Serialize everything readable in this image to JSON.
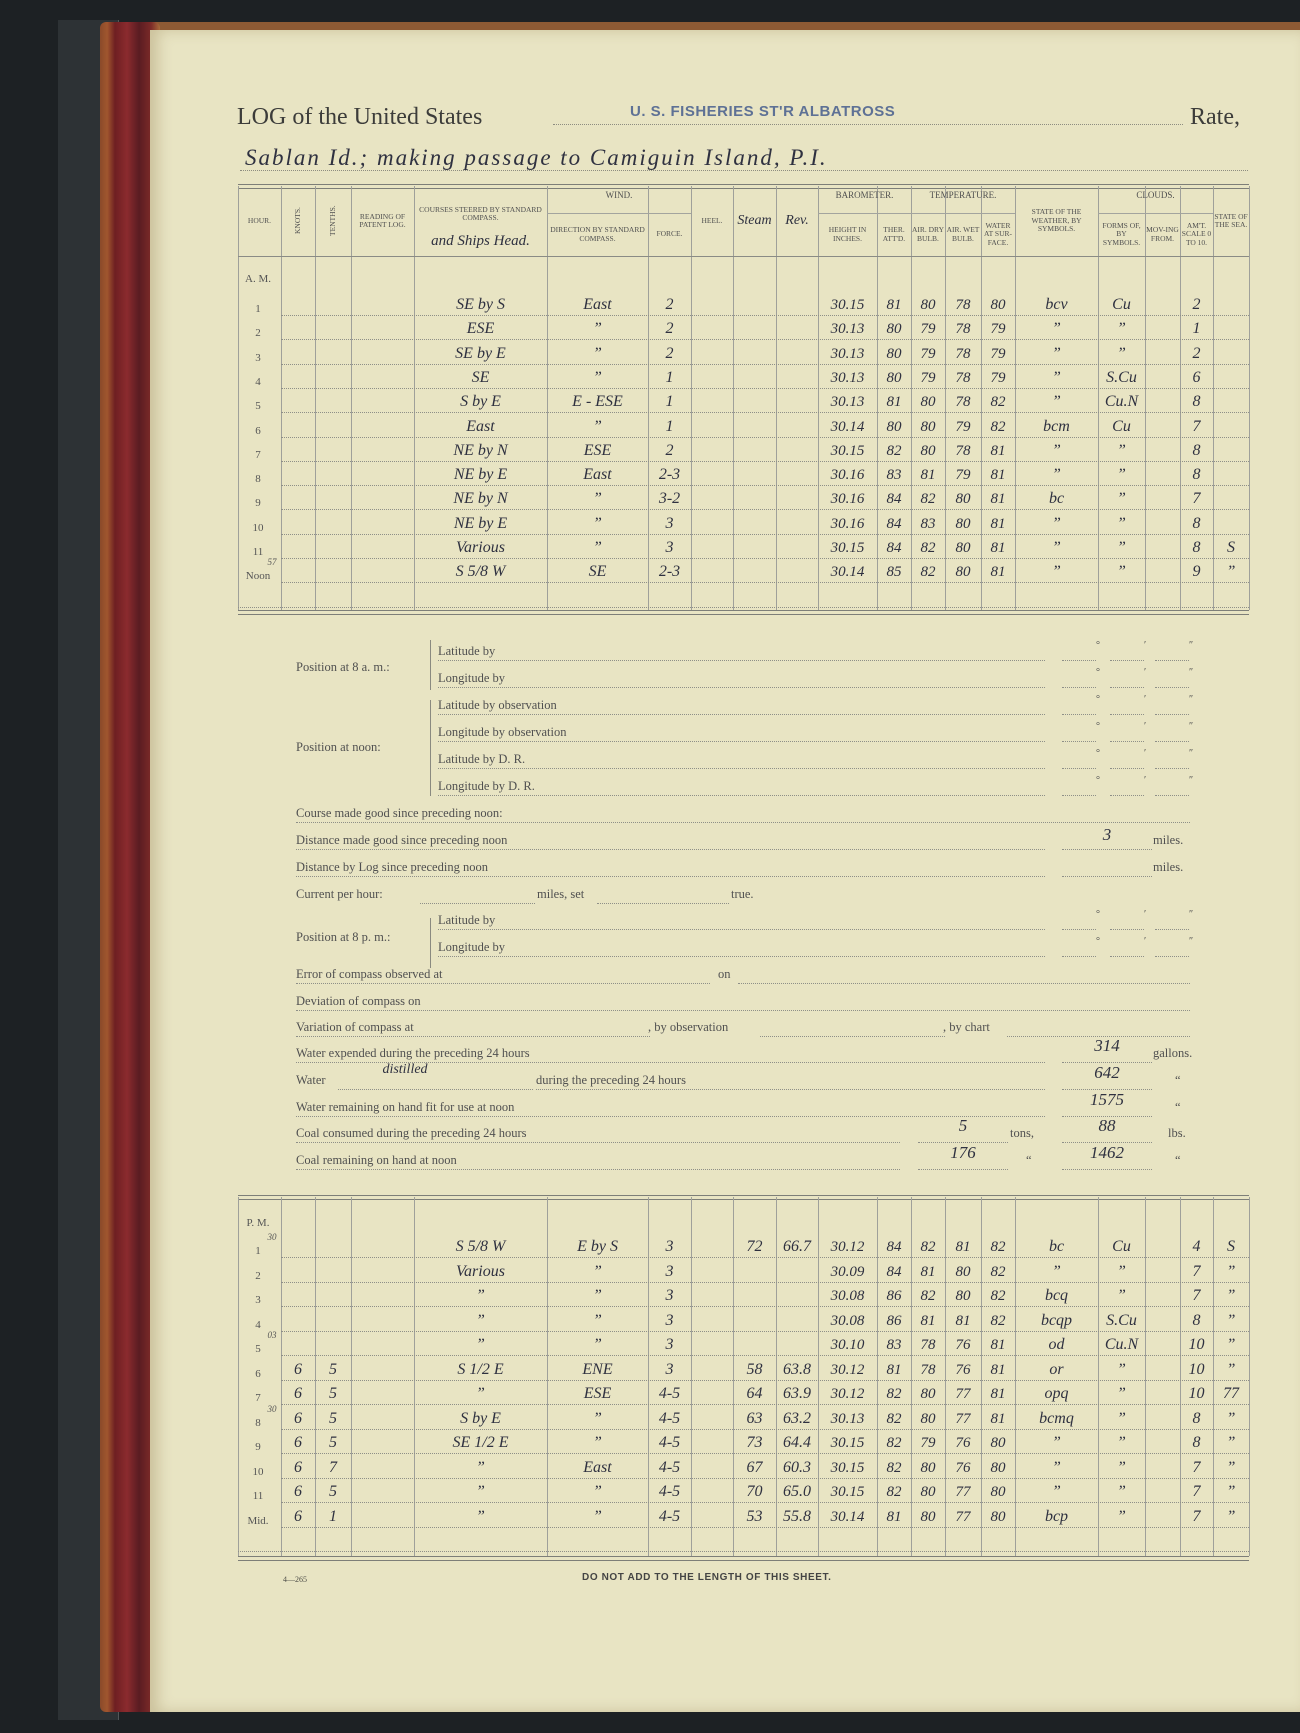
{
  "header": {
    "title_prefix": "LOG of the United States",
    "vessel_stamp": "U. S. FISHERIES ST'R ALBATROSS",
    "rate_label": "Rate,",
    "remarks_line": "Sablan Id.; making passage to Camiguin Island, P.I."
  },
  "table_headers": {
    "hour": "Hour.",
    "knots": "Knots.",
    "tenths": "Tenths.",
    "patent_log": "Reading of Patent Log.",
    "courses": "Courses steered by standard compass.",
    "courses_handwritten": "and Ships Head.",
    "wind": "Wind.",
    "wind_direction": "Direction by Standard Compass.",
    "wind_force": "Force.",
    "heel": "Heel.",
    "steam": "Steam",
    "rev": "Rev.",
    "barometer": "Barometer.",
    "baro_height": "Height in Inches.",
    "ther_att": "Ther. Att'd.",
    "temperature": "Temperature.",
    "air_dry": "Air. Dry Bulb.",
    "air_wet": "Air. Wet Bulb.",
    "water_surface": "Water at Sur-face.",
    "weather": "State of the Weather, by Symbols.",
    "clouds": "Clouds.",
    "cloud_forms": "Forms of, by Symbols.",
    "cloud_moving": "Mov-ing from.",
    "cloud_amount": "Am't. Scale 0 to 10.",
    "sea": "State of the Sea."
  },
  "am": {
    "label": "A. M.",
    "rows": [
      {
        "hour": "1",
        "course": "SE by S",
        "wind_dir": "East",
        "force": "2",
        "baro": "30.15",
        "ther": "81",
        "dry": "80",
        "wet": "78",
        "water": "80",
        "weather": "bcv",
        "cloud_form": "Cu",
        "cloud_amt": "2"
      },
      {
        "hour": "2",
        "course": "ESE",
        "wind_dir": "”",
        "force": "2",
        "baro": "30.13",
        "ther": "80",
        "dry": "79",
        "wet": "78",
        "water": "79",
        "weather": "”",
        "cloud_form": "”",
        "cloud_amt": "1"
      },
      {
        "hour": "3",
        "course": "SE by E",
        "wind_dir": "”",
        "force": "2",
        "baro": "30.13",
        "ther": "80",
        "dry": "79",
        "wet": "78",
        "water": "79",
        "weather": "”",
        "cloud_form": "”",
        "cloud_amt": "2"
      },
      {
        "hour": "4",
        "course": "SE",
        "wind_dir": "”",
        "force": "1",
        "baro": "30.13",
        "ther": "80",
        "dry": "79",
        "wet": "78",
        "water": "79",
        "weather": "”",
        "cloud_form": "S.Cu",
        "cloud_amt": "6"
      },
      {
        "hour": "5",
        "course": "S by E",
        "wind_dir": "E - ESE",
        "force": "1",
        "baro": "30.13",
        "ther": "81",
        "dry": "80",
        "wet": "78",
        "water": "82",
        "weather": "”",
        "cloud_form": "Cu.N",
        "cloud_amt": "8"
      },
      {
        "hour": "6",
        "course": "East",
        "wind_dir": "”",
        "force": "1",
        "baro": "30.14",
        "ther": "80",
        "dry": "80",
        "wet": "79",
        "water": "82",
        "weather": "bcm",
        "cloud_form": "Cu",
        "cloud_amt": "7"
      },
      {
        "hour": "7",
        "course": "NE by N",
        "wind_dir": "ESE",
        "force": "2",
        "baro": "30.15",
        "ther": "82",
        "dry": "80",
        "wet": "78",
        "water": "81",
        "weather": "”",
        "cloud_form": "”",
        "cloud_amt": "8"
      },
      {
        "hour": "8",
        "course": "NE by E",
        "wind_dir": "East",
        "force": "2-3",
        "baro": "30.16",
        "ther": "83",
        "dry": "81",
        "wet": "79",
        "water": "81",
        "weather": "”",
        "cloud_form": "”",
        "cloud_amt": "8"
      },
      {
        "hour": "9",
        "course": "NE by N",
        "wind_dir": "”",
        "force": "3-2",
        "baro": "30.16",
        "ther": "84",
        "dry": "82",
        "wet": "80",
        "water": "81",
        "weather": "bc",
        "cloud_form": "”",
        "cloud_amt": "7"
      },
      {
        "hour": "10",
        "course": "NE by E",
        "wind_dir": "”",
        "force": "3",
        "baro": "30.16",
        "ther": "84",
        "dry": "83",
        "wet": "80",
        "water": "81",
        "weather": "”",
        "cloud_form": "”",
        "cloud_amt": "8"
      },
      {
        "hour": "11",
        "course": "Various",
        "wind_dir": "”",
        "force": "3",
        "baro": "30.15",
        "ther": "84",
        "dry": "82",
        "wet": "80",
        "water": "81",
        "weather": "”",
        "cloud_form": "”",
        "cloud_amt": "8",
        "sea": "S"
      },
      {
        "hour": "Noon",
        "hour_note": "57",
        "course": "S 5/8 W",
        "wind_dir": "SE",
        "force": "2-3",
        "baro": "30.14",
        "ther": "85",
        "dry": "82",
        "wet": "80",
        "water": "81",
        "weather": "”",
        "cloud_form": "”",
        "cloud_amt": "9",
        "sea": "”"
      }
    ]
  },
  "position": {
    "at_8am": "Position at 8 a. m.:",
    "lat_by": "Latitude by",
    "long_by": "Longitude by",
    "at_noon": "Position at noon:",
    "lat_obs": "Latitude by observation",
    "long_obs": "Longitude by observation",
    "lat_dr": "Latitude by D. R.",
    "long_dr": "Longitude by D. R.",
    "at_8pm": "Position at 8 p. m.:",
    "deg": "°",
    "min": "′",
    "sec": "″"
  },
  "summary": {
    "course_made_good": "Course made good since preceding noon:",
    "distance_made_good": "Distance made good since preceding noon",
    "distance_made_good_value": "3",
    "distance_by_log": "Distance by Log since preceding noon",
    "miles": "miles.",
    "current_per_hour": "Current per hour:",
    "miles_set": "miles, set",
    "true": "true.",
    "error_compass": "Error of compass observed at",
    "on": "on",
    "deviation": "Deviation of compass on",
    "variation": "Variation of compass at",
    "by_observation": ", by observation",
    "by_chart": ", by chart",
    "water_expended": "Water expended during the preceding 24 hours",
    "water_expended_value": "314",
    "gallons": "gallons.",
    "water": "Water",
    "water_distilled_word": "distilled",
    "during_24": "during the preceding 24 hours",
    "water_distilled_value": "642",
    "ditto": "“",
    "water_remaining": "Water remaining on hand fit for use at noon",
    "water_remaining_value": "1575",
    "coal_consumed": "Coal consumed during the preceding 24 hours",
    "coal_consumed_tons": "5",
    "tons": "tons,",
    "coal_consumed_lbs": "88",
    "lbs": "lbs.",
    "coal_remaining": "Coal remaining on hand at noon",
    "coal_remaining_tons": "176",
    "coal_remaining_lbs": "1462"
  },
  "pm": {
    "label": "P. M.",
    "rows": [
      {
        "hour": "1",
        "hour_note": "30",
        "course": "S 5/8 W",
        "wind_dir": "E by S",
        "force": "3",
        "steam": "72",
        "rev": "66.7",
        "baro": "30.12",
        "ther": "84",
        "dry": "82",
        "wet": "81",
        "water": "82",
        "weather": "bc",
        "cloud_form": "Cu",
        "cloud_amt": "4",
        "sea": "S"
      },
      {
        "hour": "2",
        "course": "Various",
        "wind_dir": "”",
        "force": "3",
        "baro": "30.09",
        "ther": "84",
        "dry": "81",
        "wet": "80",
        "water": "82",
        "weather": "”",
        "cloud_form": "”",
        "cloud_amt": "7",
        "sea": "”"
      },
      {
        "hour": "3",
        "course": "”",
        "wind_dir": "”",
        "force": "3",
        "baro": "30.08",
        "ther": "86",
        "dry": "82",
        "wet": "80",
        "water": "82",
        "weather": "bcq",
        "cloud_form": "”",
        "cloud_amt": "7",
        "sea": "”"
      },
      {
        "hour": "4",
        "course": "”",
        "wind_dir": "”",
        "force": "3",
        "baro": "30.08",
        "ther": "86",
        "dry": "81",
        "wet": "81",
        "water": "82",
        "weather": "bcqp",
        "cloud_form": "S.Cu",
        "cloud_amt": "8",
        "sea": "”"
      },
      {
        "hour": "5",
        "hour_note": "03",
        "course": "”",
        "wind_dir": "”",
        "force": "3",
        "baro": "30.10",
        "ther": "83",
        "dry": "78",
        "wet": "76",
        "water": "81",
        "weather": "od",
        "cloud_form": "Cu.N",
        "cloud_amt": "10",
        "sea": "”"
      },
      {
        "hour": "6",
        "knots": "6",
        "tenths": "5",
        "course": "S 1/2 E",
        "wind_dir": "ENE",
        "force": "3",
        "steam": "58",
        "rev": "63.8",
        "baro": "30.12",
        "ther": "81",
        "dry": "78",
        "wet": "76",
        "water": "81",
        "weather": "or",
        "cloud_form": "”",
        "cloud_amt": "10",
        "sea": "”"
      },
      {
        "hour": "7",
        "knots": "6",
        "tenths": "5",
        "course": "”",
        "wind_dir": "ESE",
        "force": "4-5",
        "steam": "64",
        "rev": "63.9",
        "baro": "30.12",
        "ther": "82",
        "dry": "80",
        "wet": "77",
        "water": "81",
        "weather": "opq",
        "cloud_form": "”",
        "cloud_amt": "10",
        "sea": "77"
      },
      {
        "hour": "8",
        "hour_note": "30",
        "knots": "6",
        "tenths": "5",
        "course": "S by E",
        "wind_dir": "”",
        "force": "4-5",
        "steam": "63",
        "rev": "63.2",
        "baro": "30.13",
        "ther": "82",
        "dry": "80",
        "wet": "77",
        "water": "81",
        "weather": "bcmq",
        "cloud_form": "”",
        "cloud_amt": "8",
        "sea": "”"
      },
      {
        "hour": "9",
        "knots": "6",
        "tenths": "5",
        "course": "SE 1/2 E",
        "wind_dir": "”",
        "force": "4-5",
        "steam": "73",
        "rev": "64.4",
        "baro": "30.15",
        "ther": "82",
        "dry": "79",
        "wet": "76",
        "water": "80",
        "weather": "”",
        "cloud_form": "”",
        "cloud_amt": "8",
        "sea": "”"
      },
      {
        "hour": "10",
        "knots": "6",
        "tenths": "7",
        "course": "”",
        "wind_dir": "East",
        "force": "4-5",
        "steam": "67",
        "rev": "60.3",
        "baro": "30.15",
        "ther": "82",
        "dry": "80",
        "wet": "76",
        "water": "80",
        "weather": "”",
        "cloud_form": "”",
        "cloud_amt": "7",
        "sea": "”"
      },
      {
        "hour": "11",
        "knots": "6",
        "tenths": "5",
        "course": "”",
        "wind_dir": "”",
        "force": "4-5",
        "steam": "70",
        "rev": "65.0",
        "baro": "30.15",
        "ther": "82",
        "dry": "80",
        "wet": "77",
        "water": "80",
        "weather": "”",
        "cloud_form": "”",
        "cloud_amt": "7",
        "sea": "”"
      },
      {
        "hour": "Mid.",
        "knots": "6",
        "tenths": "1",
        "course": "”",
        "wind_dir": "”",
        "force": "4-5",
        "steam": "53",
        "rev": "55.8",
        "baro": "30.14",
        "ther": "81",
        "dry": "80",
        "wet": "77",
        "water": "80",
        "weather": "bcp",
        "cloud_form": "”",
        "cloud_amt": "7",
        "sea": "”"
      }
    ]
  },
  "footer": {
    "form_number": "4—265",
    "notice": "DO NOT ADD TO THE LENGTH OF THIS SHEET."
  },
  "colors": {
    "paper": "#e8e4c3",
    "ink": "#2f3140",
    "stamp": "#5e7195",
    "binding": "#7b2a28"
  }
}
